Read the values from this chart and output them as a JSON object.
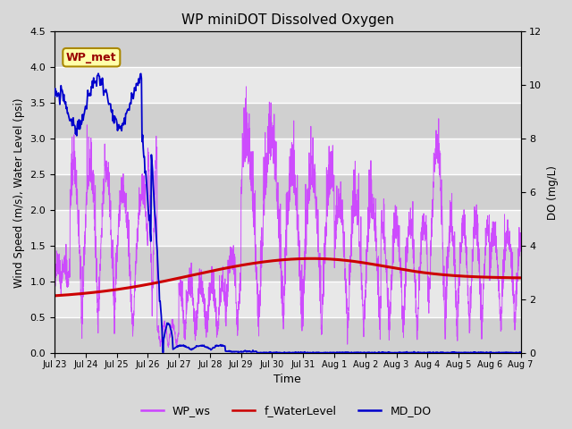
{
  "title": "WP miniDOT Dissolved Oxygen",
  "xlabel": "Time",
  "ylabel_left": "Wind Speed (m/s), Water Level (psi)",
  "ylabel_right": "DO (mg/L)",
  "ylim_left": [
    0,
    4.5
  ],
  "ylim_right": [
    0,
    12
  ],
  "yticks_left": [
    0.0,
    0.5,
    1.0,
    1.5,
    2.0,
    2.5,
    3.0,
    3.5,
    4.0,
    4.5
  ],
  "yticks_right": [
    0,
    2,
    4,
    6,
    8,
    10,
    12
  ],
  "xtick_labels": [
    "Jul 23",
    "Jul 24",
    "Jul 25",
    "Jul 26",
    "Jul 27",
    "Jul 28",
    "Jul 29",
    "Jul 30",
    "Jul 31",
    "Aug 1",
    "Aug 2",
    "Aug 3",
    "Aug 4",
    "Aug 5",
    "Aug 6",
    "Aug 7"
  ],
  "bg_color": "#d8d8d8",
  "plot_bg_color": "#e8e8e8",
  "stripe_color_dark": "#d0d0d0",
  "stripe_color_light": "#e8e8e8",
  "wp_ws_color": "#cc44ff",
  "f_water_color": "#cc0000",
  "md_do_color": "#0000cc",
  "annotation_box_facecolor": "#ffffaa",
  "annotation_box_edgecolor": "#aa8800",
  "annotation_text_color": "#990000",
  "annotation_text": "WP_met",
  "legend_labels": [
    "WP_ws",
    "f_WaterLevel",
    "MD_DO"
  ],
  "legend_colors": [
    "#cc44ff",
    "#cc0000",
    "#0000cc"
  ]
}
